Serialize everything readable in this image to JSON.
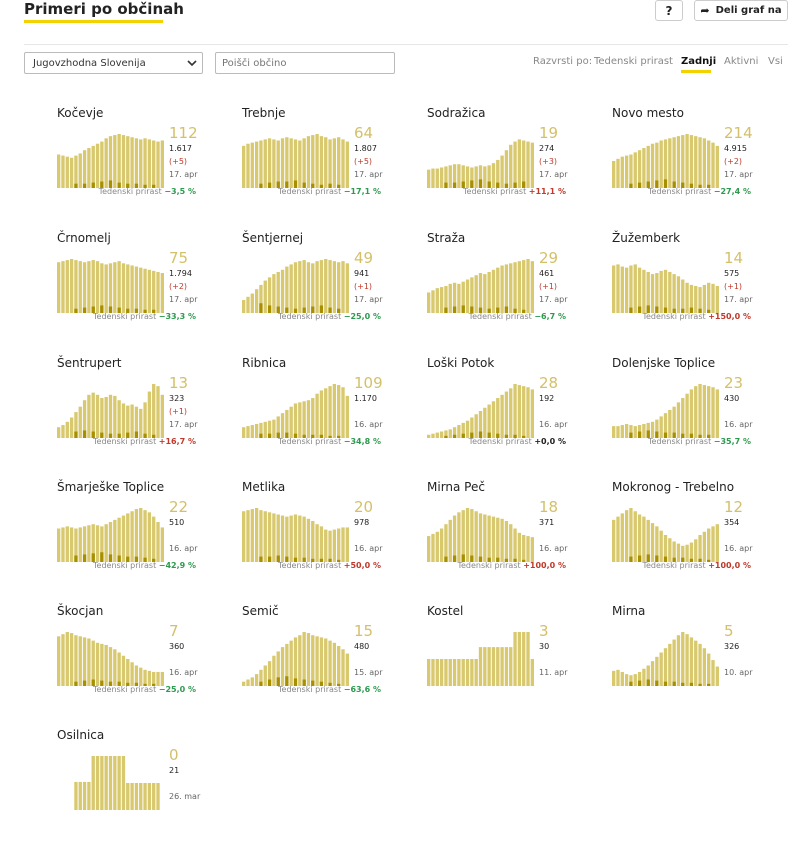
{
  "header": {
    "title": "Primeri po občinah",
    "help_label": "?",
    "share_label": "Deli graf na"
  },
  "filters": {
    "region": "Jugovzhodna Slovenija",
    "search_placeholder": "Poišči občino",
    "sort_label": "Razvrsti po:",
    "sort_options": [
      "Tedenski prirast",
      "Zadnji",
      "Aktivni",
      "Vsi"
    ],
    "active_sort": "Zadnji"
  },
  "weekly_label": "Tedenski prirast",
  "colors": {
    "bar": "#d8c86e",
    "bar_dark": "#a88f00",
    "accent": "#f2d200",
    "value": "#d4c06a",
    "positive": "#2e9a4f",
    "negative": "#c0392b"
  },
  "municipalities": [
    {
      "name": "Kočevje",
      "value": "112",
      "total": "1.617",
      "delta": "(+5)",
      "date": "17. apr",
      "weekly": "−3,5 %",
      "trend": "g",
      "bars": [
        62,
        60,
        58,
        56,
        60,
        64,
        70,
        74,
        78,
        82,
        86,
        92,
        96,
        98,
        100,
        98,
        96,
        94,
        92,
        90,
        92,
        90,
        88,
        86,
        88
      ],
      "dark": [
        8,
        8,
        10,
        12,
        14,
        10,
        8,
        8,
        6,
        6
      ]
    },
    {
      "name": "Trebnje",
      "value": "64",
      "total": "1.807",
      "delta": "(+5)",
      "date": "17. apr",
      "weekly": "−17,1 %",
      "trend": "g",
      "bars": [
        78,
        82,
        84,
        86,
        88,
        90,
        92,
        90,
        88,
        92,
        94,
        92,
        90,
        88,
        92,
        96,
        98,
        100,
        96,
        94,
        90,
        92,
        94,
        90,
        86
      ],
      "dark": [
        8,
        10,
        12,
        12,
        14,
        10,
        8,
        6,
        8,
        6
      ]
    },
    {
      "name": "Sodražica",
      "value": "19",
      "total": "274",
      "delta": "(+3)",
      "date": "17. apr",
      "weekly": "+11,1 %",
      "trend": "r",
      "bars": [
        34,
        36,
        36,
        38,
        40,
        42,
        44,
        44,
        42,
        40,
        38,
        40,
        42,
        40,
        42,
        46,
        52,
        60,
        70,
        80,
        86,
        90,
        88,
        86,
        84
      ],
      "dark": [
        10,
        10,
        12,
        14,
        16,
        12,
        10,
        8,
        10,
        12
      ]
    },
    {
      "name": "Novo mesto",
      "value": "214",
      "total": "4.915",
      "delta": "(+2)",
      "date": "17. apr",
      "weekly": "−27,4 %",
      "trend": "g",
      "bars": [
        50,
        54,
        58,
        60,
        62,
        66,
        70,
        74,
        78,
        82,
        84,
        88,
        90,
        92,
        94,
        96,
        98,
        100,
        98,
        96,
        94,
        92,
        88,
        84,
        78
      ],
      "dark": [
        8,
        10,
        12,
        14,
        16,
        12,
        10,
        8,
        6,
        6
      ]
    },
    {
      "name": "Črnomelj",
      "value": "75",
      "total": "1.794",
      "delta": "(+2)",
      "date": "17. apr",
      "weekly": "−33,3 %",
      "trend": "g",
      "bars": [
        94,
        96,
        98,
        100,
        98,
        96,
        94,
        96,
        98,
        96,
        92,
        90,
        92,
        94,
        96,
        92,
        90,
        88,
        86,
        84,
        82,
        80,
        78,
        76,
        74
      ],
      "dark": [
        8,
        10,
        12,
        14,
        12,
        10,
        8,
        8,
        6,
        6
      ]
    },
    {
      "name": "Šentjernej",
      "value": "49",
      "total": "941",
      "delta": "(+1)",
      "date": "17. apr",
      "weekly": "−25,0 %",
      "trend": "g",
      "bars": [
        24,
        30,
        36,
        44,
        52,
        60,
        66,
        72,
        76,
        80,
        86,
        90,
        94,
        96,
        98,
        94,
        92,
        96,
        98,
        100,
        98,
        96,
        94,
        96,
        92
      ],
      "dark": [
        18,
        14,
        12,
        10,
        8,
        10,
        12,
        14,
        10,
        8
      ]
    },
    {
      "name": "Straža",
      "value": "29",
      "total": "461",
      "delta": "(+1)",
      "date": "17. apr",
      "weekly": "−6,7 %",
      "trend": "g",
      "bars": [
        38,
        42,
        46,
        48,
        50,
        54,
        56,
        54,
        58,
        62,
        66,
        70,
        74,
        72,
        76,
        80,
        84,
        88,
        90,
        92,
        94,
        96,
        98,
        100,
        96
      ],
      "dark": [
        10,
        12,
        14,
        12,
        10,
        8,
        10,
        12,
        8,
        6
      ]
    },
    {
      "name": "Žužemberk",
      "value": "14",
      "total": "575",
      "delta": "(+1)",
      "date": "17. apr",
      "weekly": "+150,0 %",
      "trend": "r",
      "bars": [
        88,
        90,
        86,
        84,
        88,
        90,
        84,
        80,
        76,
        72,
        74,
        78,
        80,
        76,
        72,
        68,
        62,
        56,
        52,
        50,
        48,
        52,
        56,
        54,
        50
      ],
      "dark": [
        10,
        12,
        14,
        12,
        10,
        8,
        8,
        10,
        8,
        6
      ]
    },
    {
      "name": "Šentrupert",
      "value": "13",
      "total": "323",
      "delta": "(+1)",
      "date": "17. apr",
      "weekly": "+16,7 %",
      "trend": "r",
      "bars": [
        20,
        24,
        30,
        38,
        48,
        58,
        70,
        80,
        84,
        80,
        74,
        76,
        80,
        78,
        70,
        64,
        60,
        62,
        58,
        54,
        66,
        86,
        100,
        96,
        80
      ],
      "dark": [
        12,
        14,
        12,
        10,
        8,
        8,
        10,
        12,
        8,
        6
      ]
    },
    {
      "name": "Ribnica",
      "value": "109",
      "total": "1.170",
      "delta": "",
      "date": "16. apr",
      "weekly": "−34,8 %",
      "trend": "g",
      "bars": [
        20,
        22,
        24,
        26,
        28,
        30,
        32,
        34,
        40,
        46,
        52,
        58,
        64,
        66,
        68,
        70,
        74,
        82,
        88,
        92,
        96,
        100,
        98,
        94,
        78
      ],
      "dark": [
        8,
        8,
        10,
        10,
        8,
        6,
        6,
        6,
        4,
        4
      ]
    },
    {
      "name": "Loški Potok",
      "value": "28",
      "total": "192",
      "delta": "",
      "date": "16. apr",
      "weekly": "+0,0 %",
      "trend": "n",
      "bars": [
        6,
        8,
        10,
        12,
        14,
        16,
        20,
        24,
        28,
        32,
        38,
        44,
        50,
        56,
        62,
        68,
        74,
        80,
        86,
        92,
        100,
        98,
        96,
        94,
        90
      ],
      "dark": [
        4,
        6,
        8,
        10,
        12,
        10,
        8,
        6,
        6,
        4
      ]
    },
    {
      "name": "Dolenjske Toplice",
      "value": "23",
      "total": "430",
      "delta": "",
      "date": "16. apr",
      "weekly": "−35,7 %",
      "trend": "g",
      "bars": [
        22,
        22,
        24,
        26,
        24,
        22,
        24,
        26,
        28,
        30,
        34,
        40,
        46,
        52,
        58,
        66,
        74,
        82,
        90,
        96,
        100,
        98,
        96,
        94,
        90
      ],
      "dark": [
        10,
        12,
        14,
        12,
        10,
        10,
        8,
        8,
        6,
        6
      ]
    },
    {
      "name": "Šmarješke Toplice",
      "value": "22",
      "total": "510",
      "delta": "",
      "date": "16. apr",
      "weekly": "−42,9 %",
      "trend": "g",
      "bars": [
        62,
        64,
        66,
        64,
        62,
        64,
        66,
        68,
        70,
        68,
        66,
        70,
        74,
        78,
        82,
        86,
        90,
        94,
        98,
        100,
        96,
        92,
        84,
        74,
        64
      ],
      "dark": [
        12,
        14,
        16,
        18,
        14,
        12,
        10,
        10,
        8,
        6
      ]
    },
    {
      "name": "Metlika",
      "value": "20",
      "total": "978",
      "delta": "",
      "date": "16. apr",
      "weekly": "+50,0 %",
      "trend": "r",
      "bars": [
        94,
        96,
        98,
        100,
        96,
        94,
        92,
        90,
        88,
        86,
        84,
        86,
        88,
        86,
        84,
        80,
        76,
        70,
        66,
        60,
        58,
        60,
        62,
        64,
        64
      ],
      "dark": [
        10,
        10,
        12,
        10,
        8,
        8,
        6,
        6,
        6,
        4
      ]
    },
    {
      "name": "Mirna Peč",
      "value": "18",
      "total": "371",
      "delta": "",
      "date": "16. apr",
      "weekly": "+100,0 %",
      "trend": "r",
      "bars": [
        48,
        52,
        56,
        62,
        70,
        78,
        86,
        92,
        96,
        100,
        98,
        94,
        90,
        88,
        86,
        84,
        82,
        80,
        76,
        70,
        62,
        54,
        50,
        48,
        46
      ],
      "dark": [
        10,
        12,
        14,
        12,
        10,
        8,
        8,
        6,
        6,
        4
      ]
    },
    {
      "name": "Mokronog - Trebelno",
      "value": "12",
      "total": "354",
      "delta": "",
      "date": "16. apr",
      "weekly": "+100,0 %",
      "trend": "r",
      "bars": [
        78,
        84,
        90,
        96,
        100,
        94,
        88,
        84,
        78,
        72,
        66,
        58,
        50,
        44,
        38,
        34,
        30,
        32,
        36,
        42,
        50,
        56,
        62,
        66,
        70
      ],
      "dark": [
        10,
        12,
        14,
        12,
        10,
        8,
        8,
        6,
        6,
        4
      ]
    },
    {
      "name": "Škocjan",
      "value": "7",
      "total": "360",
      "delta": "",
      "date": "16. apr",
      "weekly": "−25,0 %",
      "trend": "g",
      "bars": [
        92,
        96,
        100,
        98,
        94,
        92,
        90,
        88,
        84,
        80,
        78,
        76,
        72,
        68,
        62,
        56,
        50,
        44,
        38,
        34,
        30,
        28,
        26,
        26,
        26
      ],
      "dark": [
        8,
        10,
        12,
        10,
        8,
        8,
        6,
        6,
        4,
        4
      ]
    },
    {
      "name": "Semič",
      "value": "15",
      "total": "480",
      "delta": "",
      "date": "15. apr",
      "weekly": "−63,6 %",
      "trend": "g",
      "bars": [
        8,
        12,
        16,
        22,
        30,
        38,
        46,
        56,
        64,
        72,
        78,
        84,
        90,
        94,
        100,
        98,
        94,
        92,
        90,
        88,
        84,
        80,
        74,
        68,
        60
      ],
      "dark": [
        8,
        12,
        16,
        18,
        14,
        12,
        10,
        8,
        6,
        4
      ]
    },
    {
      "name": "Kostel",
      "value": "3",
      "total": "30",
      "delta": "",
      "date": "11. apr",
      "weekly": "",
      "trend": "n",
      "bars": [
        50,
        50,
        50,
        50,
        50,
        50,
        50,
        50,
        50,
        50,
        50,
        50,
        72,
        72,
        72,
        72,
        72,
        72,
        72,
        72,
        100,
        100,
        100,
        100,
        50
      ],
      "dark": [
        0,
        0,
        0,
        0,
        0,
        0,
        0,
        0,
        0,
        0
      ]
    },
    {
      "name": "Mirna",
      "value": "5",
      "total": "326",
      "delta": "",
      "date": "10. apr",
      "weekly": "",
      "trend": "n",
      "bars": [
        28,
        30,
        26,
        22,
        20,
        22,
        26,
        32,
        38,
        46,
        54,
        62,
        70,
        78,
        86,
        94,
        100,
        96,
        90,
        84,
        78,
        70,
        60,
        48,
        36
      ],
      "dark": [
        8,
        10,
        12,
        10,
        8,
        8,
        6,
        6,
        4,
        4
      ]
    },
    {
      "name": "Osilnica",
      "value": "0",
      "total": "21",
      "delta": "",
      "date": "26. mar",
      "weekly": "",
      "trend": "n",
      "bars": [
        0,
        0,
        0,
        0,
        52,
        52,
        52,
        52,
        100,
        100,
        100,
        100,
        100,
        100,
        100,
        100,
        50,
        50,
        50,
        50,
        50,
        50,
        50,
        50,
        0
      ],
      "dark": [
        0,
        0,
        0,
        0,
        0,
        0,
        0,
        0,
        0,
        0
      ]
    }
  ]
}
